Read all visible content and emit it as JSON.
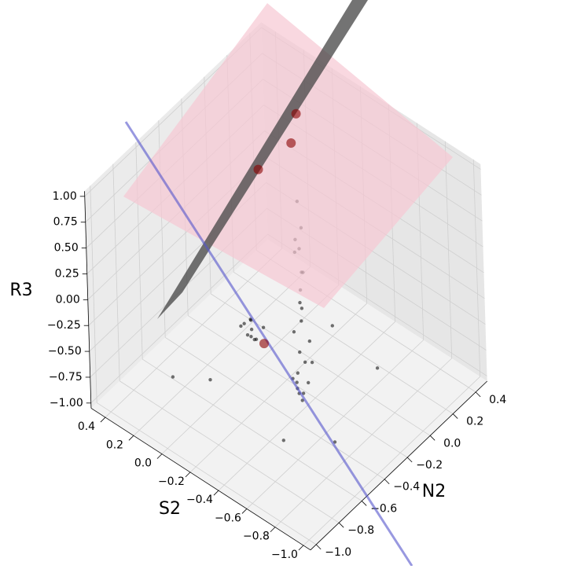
{
  "chart_data": {
    "type": "scatter3d",
    "xlabel": "S2",
    "ylabel": "N2",
    "zlabel": "R3",
    "xlim": [
      -1.05,
      0.5
    ],
    "ylim": [
      -1.05,
      0.5
    ],
    "zlim": [
      -1.05,
      1.05
    ],
    "xticks": [
      {
        "value": -1.0,
        "label": "−1.0"
      },
      {
        "value": -0.8,
        "label": "−0.8"
      },
      {
        "value": -0.6,
        "label": "−0.6"
      },
      {
        "value": -0.4,
        "label": "−0.4"
      },
      {
        "value": -0.2,
        "label": "−0.2"
      },
      {
        "value": 0.0,
        "label": "0.0"
      },
      0.2,
      0.4
    ],
    "yticks": [
      {
        "value": -1.0,
        "label": "−1.0"
      },
      {
        "value": -0.8,
        "label": "−0.8"
      },
      {
        "value": -0.6,
        "label": "−0.6"
      },
      {
        "value": -0.4,
        "label": "−0.4"
      },
      {
        "value": -0.2,
        "label": "−0.2"
      },
      {
        "value": 0.0,
        "label": "0.0"
      },
      0.2,
      0.4
    ],
    "zticks": [
      {
        "value": -1.0,
        "label": "−1.00"
      },
      {
        "value": -0.75,
        "label": "−0.75"
      },
      {
        "value": -0.5,
        "label": "−0.50"
      },
      {
        "value": -0.25,
        "label": "−0.25"
      },
      {
        "value": 0.0,
        "label": "0.00"
      },
      0.25,
      {
        "value": 0.5,
        "label": "0.50"
      },
      0.75,
      {
        "value": 1.0,
        "label": "1.00"
      }
    ],
    "grid": true,
    "series": [
      {
        "color": "#000000",
        "x": [
          -0.4,
          -0.42,
          -0.38,
          -0.41,
          -0.39,
          -0.43,
          -0.37,
          -0.4,
          -0.36,
          -0.44,
          -0.4,
          -0.38,
          -0.42,
          -0.35,
          -0.4,
          -0.39,
          -0.41,
          -0.37,
          -0.04,
          -0.02,
          -0.06,
          0.0,
          -0.08,
          -0.03,
          -0.05,
          0.02,
          -0.1,
          -0.01,
          -0.4,
          -0.45,
          -0.38,
          -0.42,
          -0.36,
          -0.3,
          -0.5,
          0.1,
          -0.6,
          -0.2,
          -0.7,
          0.2
        ],
        "y": [
          -0.3,
          -0.28,
          -0.32,
          -0.29,
          -0.31,
          -0.27,
          -0.33,
          -0.3,
          -0.26,
          -0.34,
          -0.3,
          -0.25,
          -0.31,
          -0.28,
          -0.3,
          -0.32,
          -0.29,
          -0.27,
          -0.3,
          -0.28,
          -0.33,
          -0.26,
          -0.31,
          -0.35,
          -0.29,
          -0.32,
          -0.27,
          -0.3,
          -0.35,
          -0.37,
          -0.33,
          -0.36,
          -0.34,
          -0.1,
          -0.6,
          -0.5,
          0.1,
          0.2,
          -0.4,
          -0.7
        ],
        "z": [
          -0.9,
          -0.8,
          -0.7,
          -0.6,
          -0.5,
          -0.4,
          -0.3,
          -0.2,
          -0.1,
          0.0,
          0.1,
          0.2,
          0.3,
          0.4,
          0.5,
          0.6,
          0.7,
          0.9,
          -0.6,
          -0.55,
          -0.62,
          -0.58,
          -0.65,
          -0.5,
          -0.7,
          -0.6,
          -0.56,
          -0.68,
          -0.8,
          -0.85,
          -0.78,
          -0.82,
          -0.75,
          -0.9,
          -0.95,
          -1.0,
          -0.9,
          -0.95,
          -1.0,
          -0.85
        ]
      },
      {
        "color": "#8b0000",
        "x": [
          0.1,
          0.1,
          0.3,
          0.0
        ],
        "y": [
          0.3,
          0.25,
          0.2,
          -0.15
        ],
        "z": [
          0.73,
          0.5,
          0.12,
          -0.93
        ]
      }
    ]
  }
}
